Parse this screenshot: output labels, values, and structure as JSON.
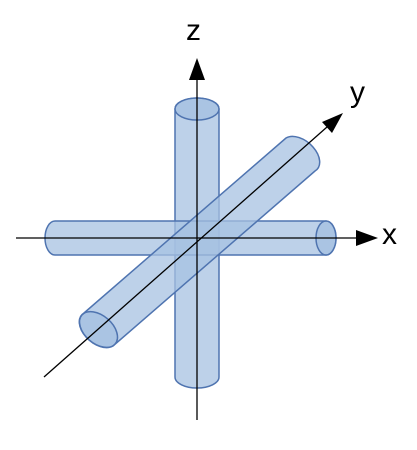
{
  "axes": {
    "x": {
      "label": "x"
    },
    "y": {
      "label": "y"
    },
    "z": {
      "label": "z"
    }
  },
  "colors": {
    "cylinder_fill": "#a7c2e2",
    "cylinder_stroke": "#4f74b0",
    "axis_line": "#000000",
    "background": "#ffffff"
  }
}
